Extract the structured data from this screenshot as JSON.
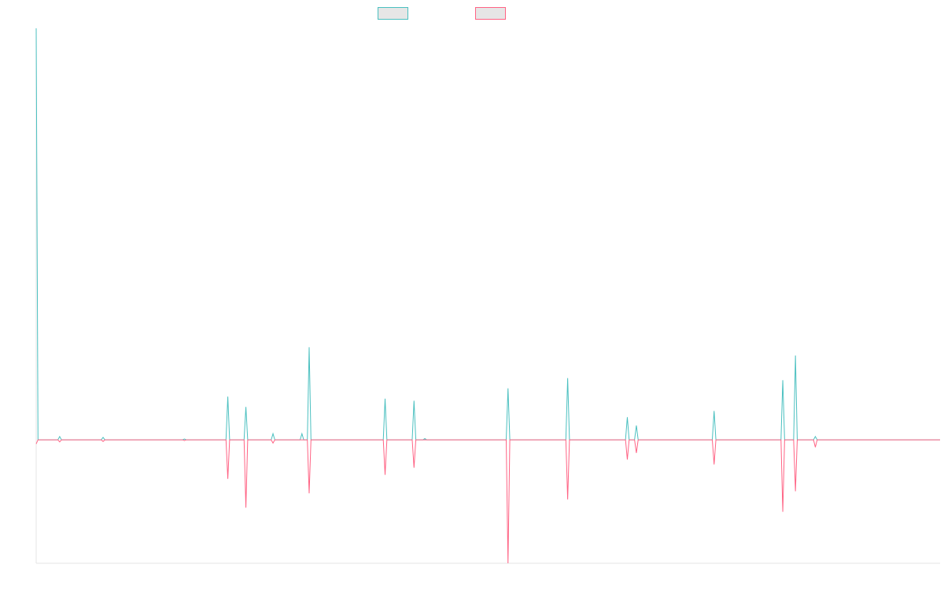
{
  "colors": {
    "series_up": "#4bc0c0",
    "series_down": "#ff6384",
    "legend_fill": "#e6e6e6",
    "axis": "#e5e5e5",
    "background": "#ffffff"
  },
  "chart_data": {
    "type": "line",
    "title": "",
    "xlabel": "",
    "ylabel": "",
    "grid": false,
    "legend": "top-center",
    "x_start": 0,
    "x_end": 100,
    "ylim": [
      -30,
      100
    ],
    "series": [
      {
        "color": "#4bc0c0",
        "points": [
          [
            0,
            100
          ],
          [
            0.2,
            0
          ],
          [
            2.4,
            0
          ],
          [
            2.6,
            0.8
          ],
          [
            2.8,
            0
          ],
          [
            7.2,
            0
          ],
          [
            7.4,
            0.6
          ],
          [
            7.6,
            0
          ],
          [
            16.2,
            0
          ],
          [
            16.4,
            0.2
          ],
          [
            16.6,
            0
          ],
          [
            21.0,
            0
          ],
          [
            21.2,
            10.5
          ],
          [
            21.4,
            0
          ],
          [
            23.0,
            0
          ],
          [
            23.2,
            8
          ],
          [
            23.4,
            0
          ],
          [
            26.0,
            0
          ],
          [
            26.2,
            1.5
          ],
          [
            26.4,
            0
          ],
          [
            29.2,
            0
          ],
          [
            29.4,
            1.5
          ],
          [
            29.6,
            0
          ],
          [
            30.0,
            0
          ],
          [
            30.2,
            22.5
          ],
          [
            30.4,
            0
          ],
          [
            38.4,
            0
          ],
          [
            38.6,
            10
          ],
          [
            38.8,
            0
          ],
          [
            41.6,
            0
          ],
          [
            41.8,
            9.5
          ],
          [
            42.0,
            0
          ],
          [
            42.8,
            0
          ],
          [
            43.0,
            0.3
          ],
          [
            43.2,
            0
          ],
          [
            52.0,
            0
          ],
          [
            52.2,
            12.5
          ],
          [
            52.4,
            0
          ],
          [
            58.6,
            0
          ],
          [
            58.8,
            15
          ],
          [
            59.0,
            0
          ],
          [
            65.2,
            0
          ],
          [
            65.4,
            5.5
          ],
          [
            65.6,
            0
          ],
          [
            66.2,
            0
          ],
          [
            66.4,
            3.5
          ],
          [
            66.6,
            0
          ],
          [
            74.8,
            0
          ],
          [
            75.0,
            7
          ],
          [
            75.2,
            0
          ],
          [
            82.4,
            0
          ],
          [
            82.6,
            14.5
          ],
          [
            82.8,
            0
          ],
          [
            83.8,
            0
          ],
          [
            84.0,
            20.5
          ],
          [
            84.2,
            0
          ],
          [
            86.0,
            0
          ],
          [
            86.2,
            0.8
          ],
          [
            86.4,
            0
          ],
          [
            100,
            0
          ]
        ]
      },
      {
        "color": "#ff6384",
        "points": [
          [
            0,
            -1
          ],
          [
            0.2,
            0
          ],
          [
            2.4,
            0
          ],
          [
            2.6,
            -0.5
          ],
          [
            2.8,
            0
          ],
          [
            7.2,
            0
          ],
          [
            7.4,
            -0.4
          ],
          [
            7.6,
            0
          ],
          [
            16.2,
            0
          ],
          [
            16.4,
            -0.2
          ],
          [
            16.6,
            0
          ],
          [
            21.0,
            0
          ],
          [
            21.2,
            -9.5
          ],
          [
            21.4,
            0
          ],
          [
            23.0,
            0
          ],
          [
            23.2,
            -16.5
          ],
          [
            23.4,
            0
          ],
          [
            26.0,
            0
          ],
          [
            26.2,
            -0.8
          ],
          [
            26.4,
            0
          ],
          [
            30.0,
            0
          ],
          [
            30.2,
            -13
          ],
          [
            30.4,
            0
          ],
          [
            38.4,
            0
          ],
          [
            38.6,
            -8.5
          ],
          [
            38.8,
            0
          ],
          [
            41.6,
            0
          ],
          [
            41.8,
            -6.8
          ],
          [
            42.0,
            0
          ],
          [
            52.0,
            0
          ],
          [
            52.2,
            -30
          ],
          [
            52.4,
            0
          ],
          [
            58.6,
            0
          ],
          [
            58.8,
            -14.5
          ],
          [
            59.0,
            0
          ],
          [
            65.2,
            0
          ],
          [
            65.4,
            -4.8
          ],
          [
            65.6,
            0
          ],
          [
            66.2,
            0
          ],
          [
            66.4,
            -3.2
          ],
          [
            66.6,
            0
          ],
          [
            74.8,
            0
          ],
          [
            75.0,
            -6
          ],
          [
            75.2,
            0
          ],
          [
            82.4,
            0
          ],
          [
            82.6,
            -17.5
          ],
          [
            82.8,
            0
          ],
          [
            83.8,
            0
          ],
          [
            84.0,
            -12.5
          ],
          [
            84.2,
            0
          ],
          [
            86.0,
            0
          ],
          [
            86.2,
            -1.8
          ],
          [
            86.4,
            0
          ],
          [
            100,
            0
          ]
        ]
      }
    ]
  }
}
